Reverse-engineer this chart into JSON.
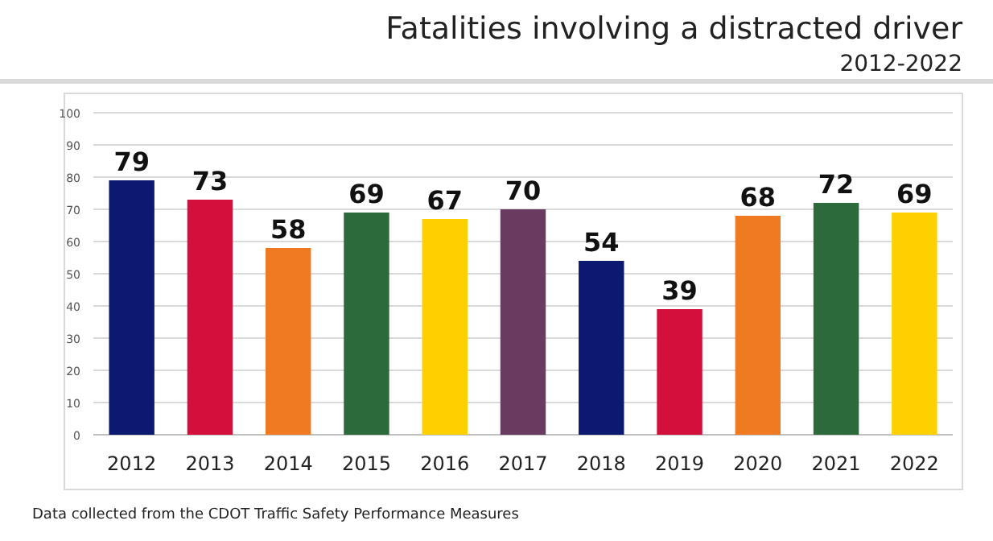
{
  "chart_data": {
    "type": "bar",
    "title": "Fatalities involving a distracted driver",
    "subtitle": "2012-2022",
    "categories": [
      "2012",
      "2013",
      "2014",
      "2015",
      "2016",
      "2017",
      "2018",
      "2019",
      "2020",
      "2021",
      "2022"
    ],
    "values": [
      79,
      73,
      58,
      69,
      67,
      70,
      54,
      39,
      68,
      72,
      69
    ],
    "colors": [
      "#0b1a70",
      "#d3103c",
      "#f07a22",
      "#2c6a3c",
      "#ffd000",
      "#6b3a60",
      "#0b1a70",
      "#d3103c",
      "#f07a22",
      "#2c6a3c",
      "#ffd000"
    ],
    "ylim": [
      0,
      100
    ],
    "yticks": [
      0,
      10,
      20,
      30,
      40,
      50,
      60,
      70,
      80,
      90,
      100
    ],
    "grid": "y",
    "data_labels": true,
    "annotations": [
      "Data collected from the CDOT Traffic Safety Performance Measures"
    ]
  }
}
